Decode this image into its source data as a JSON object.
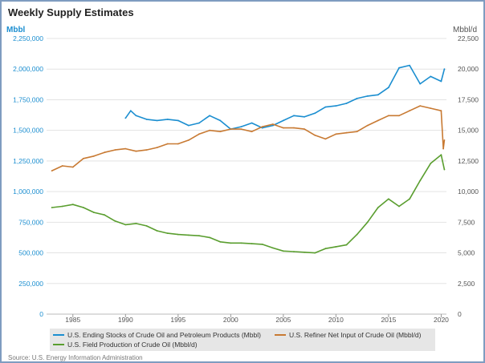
{
  "title": "Weekly Supply Estimates",
  "source": "Source: U.S. Energy Information Administration",
  "chart_data": {
    "type": "line",
    "title": "Weekly Supply Estimates",
    "left_axis": {
      "unit": "Mbbl",
      "range": [
        0,
        2250000
      ],
      "ticks": [
        "0",
        "250,000",
        "500,000",
        "750,000",
        "1,000,000",
        "1,250,000",
        "1,500,000",
        "1,750,000",
        "2,000,000",
        "2,250,000"
      ],
      "color": "#1b8ed0"
    },
    "right_axis": {
      "unit": "Mbbl/d",
      "range": [
        0,
        22500
      ],
      "ticks": [
        "0",
        "2,500",
        "5,000",
        "7,500",
        "10,000",
        "12,500",
        "15,000",
        "17,500",
        "20,000",
        "22,500"
      ]
    },
    "x_axis": {
      "range": [
        1982.5,
        2020.5
      ],
      "ticks": [
        "1985",
        "1990",
        "1995",
        "2000",
        "2005",
        "2010",
        "2015",
        "2020"
      ]
    },
    "grid": true,
    "legend_position": "bottom",
    "series": [
      {
        "name": "U.S. Ending Stocks of Crude Oil and Petroleum Products (Mbbl)",
        "axis": "left",
        "color": "#1b8ed0",
        "x": [
          1990.0,
          1990.5,
          1991,
          1992,
          1993,
          1994,
          1995,
          1996,
          1997,
          1998,
          1999,
          2000,
          2001,
          2002,
          2003,
          2004,
          2005,
          2006,
          2007,
          2008,
          2009,
          2010,
          2011,
          2012,
          2013,
          2014,
          2015,
          2016,
          2017,
          2018,
          2019,
          2020.0,
          2020.3
        ],
        "y": [
          1600000,
          1660000,
          1620000,
          1590000,
          1580000,
          1590000,
          1580000,
          1540000,
          1560000,
          1620000,
          1580000,
          1510000,
          1530000,
          1560000,
          1520000,
          1540000,
          1580000,
          1620000,
          1610000,
          1640000,
          1690000,
          1700000,
          1720000,
          1760000,
          1780000,
          1790000,
          1850000,
          2010000,
          2030000,
          1880000,
          1940000,
          1900000,
          2000000
        ]
      },
      {
        "name": "U.S. Refiner Net Input of Crude Oil (Mbbl/d)",
        "axis": "right",
        "color": "#c87a33",
        "x": [
          1983,
          1984,
          1985,
          1986,
          1987,
          1988,
          1989,
          1990,
          1991,
          1992,
          1993,
          1994,
          1995,
          1996,
          1997,
          1998,
          1999,
          2000,
          2001,
          2002,
          2003,
          2004,
          2005,
          2006,
          2007,
          2008,
          2009,
          2010,
          2011,
          2012,
          2013,
          2014,
          2015,
          2016,
          2017,
          2018,
          2019,
          2020.0,
          2020.2,
          2020.3
        ],
        "y": [
          11700,
          12100,
          12000,
          12700,
          12900,
          13200,
          13400,
          13500,
          13300,
          13400,
          13600,
          13900,
          13900,
          14200,
          14700,
          15000,
          14900,
          15100,
          15100,
          14900,
          15300,
          15500,
          15200,
          15200,
          15100,
          14600,
          14300,
          14700,
          14800,
          14900,
          15400,
          15800,
          16200,
          16200,
          16600,
          17000,
          16800,
          16600,
          13500,
          14200
        ]
      },
      {
        "name": "U.S. Field Production of Crude Oil (Mbbl/d)",
        "axis": "right",
        "color": "#5a9e2f",
        "x": [
          1983,
          1984,
          1985,
          1986,
          1987,
          1988,
          1989,
          1990,
          1991,
          1992,
          1993,
          1994,
          1995,
          1996,
          1997,
          1998,
          1999,
          2000,
          2001,
          2002,
          2003,
          2004,
          2005,
          2006,
          2007,
          2008,
          2009,
          2010,
          2011,
          2012,
          2013,
          2014,
          2015,
          2016,
          2017,
          2018,
          2019,
          2020.0,
          2020.3
        ],
        "y": [
          8700,
          8800,
          8950,
          8700,
          8300,
          8100,
          7600,
          7300,
          7400,
          7200,
          6800,
          6600,
          6500,
          6450,
          6400,
          6250,
          5900,
          5800,
          5800,
          5750,
          5700,
          5400,
          5150,
          5100,
          5050,
          5000,
          5350,
          5500,
          5650,
          6500,
          7500,
          8700,
          9400,
          8800,
          9400,
          10900,
          12300,
          13000,
          11800
        ]
      }
    ]
  }
}
